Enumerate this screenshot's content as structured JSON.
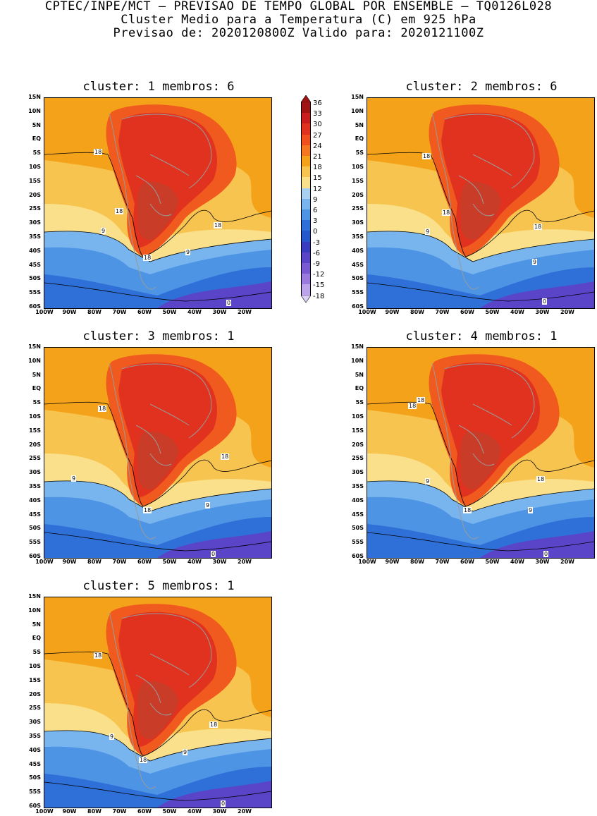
{
  "header": {
    "line1": "CPTEC/INPE/MCT — PREVISAO DE TEMPO GLOBAL POR ENSEMBLE — TQ0126L028",
    "line2": "Cluster Medio para a Temperatura (C) em 925 hPa",
    "line3": "Previsao de: 2020120800Z   Valido para: 2020121100Z"
  },
  "panels": [
    {
      "title": "cluster: 1   membros: 6",
      "labels": [
        "18",
        "18",
        "18",
        "9",
        "9",
        "18",
        "0"
      ]
    },
    {
      "title": "cluster: 2   membros: 6",
      "labels": [
        "18",
        "18",
        "9",
        "18",
        "9",
        "0"
      ]
    },
    {
      "title": "cluster: 3   membros: 1",
      "labels": [
        "18",
        "18",
        "9",
        "18",
        "9",
        "0"
      ]
    },
    {
      "title": "cluster: 4   membros: 1",
      "labels": [
        "18",
        "18",
        "9",
        "18",
        "18",
        "9",
        "0"
      ]
    },
    {
      "title": "cluster: 5   membros: 1",
      "labels": [
        "18",
        "18",
        "9",
        "18",
        "9",
        "0"
      ]
    }
  ],
  "lat_labels": [
    "15N",
    "10N",
    "5N",
    "EQ",
    "5S",
    "10S",
    "15S",
    "20S",
    "25S",
    "30S",
    "35S",
    "40S",
    "45S",
    "50S",
    "55S",
    "60S"
  ],
  "lon_labels": [
    "100W",
    "90W",
    "80W",
    "70W",
    "60W",
    "50W",
    "40W",
    "30W",
    "20W"
  ],
  "colorbar": {
    "values": [
      "36",
      "33",
      "30",
      "27",
      "24",
      "21",
      "18",
      "15",
      "12",
      "9",
      "6",
      "3",
      "0",
      "-3",
      "-6",
      "-9",
      "-12",
      "-15",
      "-18"
    ],
    "colors": [
      "#a01414",
      "#c81e1e",
      "#e0321e",
      "#f0501e",
      "#f57820",
      "#f4a219",
      "#f8c450",
      "#fae08a",
      "#a8d0f0",
      "#78b4ee",
      "#4e94e4",
      "#2e70d8",
      "#2458cc",
      "#3a3cc0",
      "#5a44c8",
      "#7a5ad2",
      "#9a7ade",
      "#bca4ea",
      "#ddd0f6"
    ]
  },
  "palette": {
    "warm_dark": "#c83c28",
    "warm_mid": "#e0321e",
    "warm_light": "#f05a1e",
    "orange": "#f4a219",
    "yellow": "#f8c450",
    "pale_yellow": "#fae08a",
    "light_blue": "#78b4ee",
    "mid_blue": "#4e94e4",
    "deep_blue": "#2e70d8",
    "indigo": "#5a44c8"
  }
}
